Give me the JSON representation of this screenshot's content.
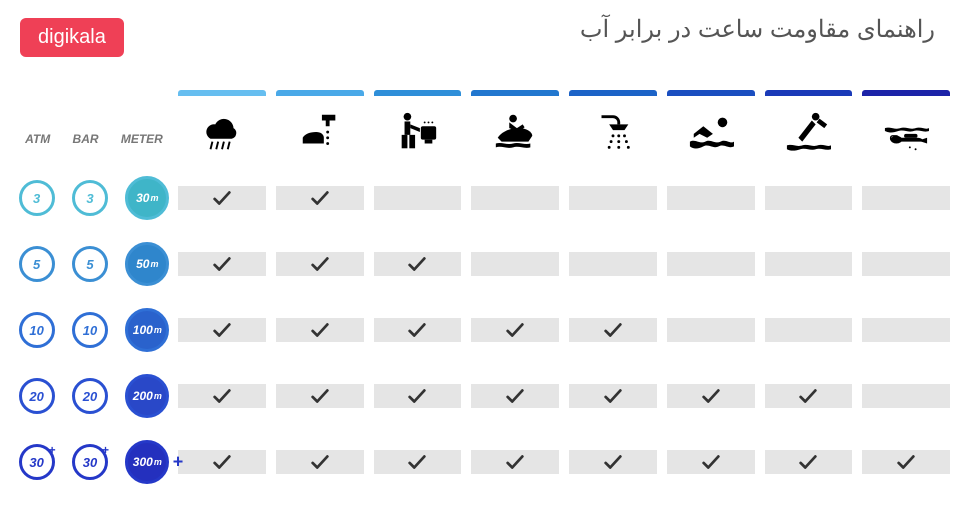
{
  "logo": "digikala",
  "title": "راهنمای مقاومت ساعت در برابر آب",
  "unit_headers": [
    "ATM",
    "BAR",
    "METER"
  ],
  "activities": [
    {
      "id": "rain",
      "bar_color": "#66bef0"
    },
    {
      "id": "handwash",
      "bar_color": "#4aa9e8"
    },
    {
      "id": "sink",
      "bar_color": "#2f8fd9"
    },
    {
      "id": "jetski",
      "bar_color": "#2277cf"
    },
    {
      "id": "shower",
      "bar_color": "#1c63c7"
    },
    {
      "id": "swim",
      "bar_color": "#1a4ec0"
    },
    {
      "id": "dive",
      "bar_color": "#1a3ab8"
    },
    {
      "id": "scuba",
      "bar_color": "#1c23a8"
    }
  ],
  "rows": [
    {
      "atm": "3",
      "bar": "3",
      "meter": "30",
      "ring_color": "#4fbcd6",
      "fill_color": "#3fb5c8",
      "plus": false,
      "checks": [
        true,
        true,
        false,
        false,
        false,
        false,
        false,
        false
      ]
    },
    {
      "atm": "5",
      "bar": "5",
      "meter": "50",
      "ring_color": "#3b8fd4",
      "fill_color": "#2f86cc",
      "plus": false,
      "checks": [
        true,
        true,
        true,
        false,
        false,
        false,
        false,
        false
      ]
    },
    {
      "atm": "10",
      "bar": "10",
      "meter": "100",
      "ring_color": "#2f6fd6",
      "fill_color": "#2a62cc",
      "plus": false,
      "checks": [
        true,
        true,
        true,
        true,
        true,
        false,
        false,
        false
      ]
    },
    {
      "atm": "20",
      "bar": "20",
      "meter": "200",
      "ring_color": "#2a50d2",
      "fill_color": "#2948c8",
      "plus": false,
      "checks": [
        true,
        true,
        true,
        true,
        true,
        true,
        true,
        false
      ]
    },
    {
      "atm": "30",
      "bar": "30",
      "meter": "300",
      "ring_color": "#2538c8",
      "fill_color": "#2430be",
      "plus": true,
      "checks": [
        true,
        true,
        true,
        true,
        true,
        true,
        true,
        true
      ]
    }
  ],
  "colors": {
    "check": "#333333",
    "cell_bg": "#e5e5e5",
    "logo_bg": "#ef4056",
    "title_color": "#555555"
  }
}
